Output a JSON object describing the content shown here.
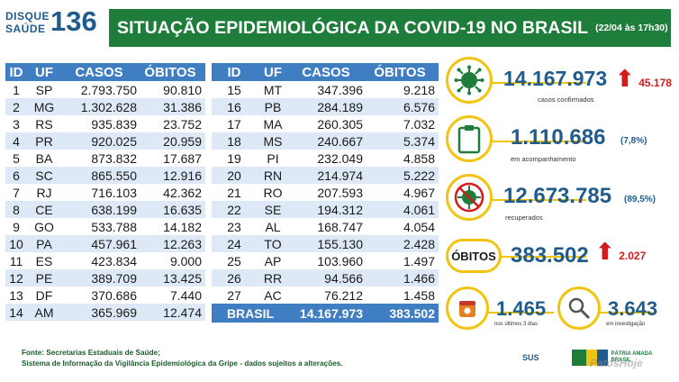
{
  "header": {
    "logo_line1": "DISQUE",
    "logo_line2": "SAÚDE",
    "logo_number": "136",
    "title": "SITUAÇÃO EPIDEMIOLÓGICA DA COVID-19 NO BRASIL",
    "date": "(22/04 às 17h30)"
  },
  "columns": {
    "id": "ID",
    "uf": "UF",
    "casos": "CASOS",
    "obitos": "ÓBITOS"
  },
  "table_left": [
    {
      "id": "1",
      "uf": "SP",
      "casos": "2.793.750",
      "obitos": "90.810"
    },
    {
      "id": "2",
      "uf": "MG",
      "casos": "1.302.628",
      "obitos": "31.386"
    },
    {
      "id": "3",
      "uf": "RS",
      "casos": "935.839",
      "obitos": "23.752"
    },
    {
      "id": "4",
      "uf": "PR",
      "casos": "920.025",
      "obitos": "20.959"
    },
    {
      "id": "5",
      "uf": "BA",
      "casos": "873.832",
      "obitos": "17.687"
    },
    {
      "id": "6",
      "uf": "SC",
      "casos": "865.550",
      "obitos": "12.916"
    },
    {
      "id": "7",
      "uf": "RJ",
      "casos": "716.103",
      "obitos": "42.362"
    },
    {
      "id": "8",
      "uf": "CE",
      "casos": "638.199",
      "obitos": "16.635"
    },
    {
      "id": "9",
      "uf": "GO",
      "casos": "533.788",
      "obitos": "14.182"
    },
    {
      "id": "10",
      "uf": "PA",
      "casos": "457.961",
      "obitos": "12.263"
    },
    {
      "id": "11",
      "uf": "ES",
      "casos": "423.834",
      "obitos": "9.000"
    },
    {
      "id": "12",
      "uf": "PE",
      "casos": "389.709",
      "obitos": "13.425"
    },
    {
      "id": "13",
      "uf": "DF",
      "casos": "370.686",
      "obitos": "7.440"
    },
    {
      "id": "14",
      "uf": "AM",
      "casos": "365.969",
      "obitos": "12.474"
    }
  ],
  "table_right": [
    {
      "id": "15",
      "uf": "MT",
      "casos": "347.396",
      "obitos": "9.218"
    },
    {
      "id": "16",
      "uf": "PB",
      "casos": "284.189",
      "obitos": "6.576"
    },
    {
      "id": "17",
      "uf": "MA",
      "casos": "260.305",
      "obitos": "7.032"
    },
    {
      "id": "18",
      "uf": "MS",
      "casos": "240.667",
      "obitos": "5.374"
    },
    {
      "id": "19",
      "uf": "PI",
      "casos": "232.049",
      "obitos": "4.858"
    },
    {
      "id": "20",
      "uf": "RN",
      "casos": "214.974",
      "obitos": "5.222"
    },
    {
      "id": "21",
      "uf": "RO",
      "casos": "207.593",
      "obitos": "4.967"
    },
    {
      "id": "22",
      "uf": "SE",
      "casos": "194.312",
      "obitos": "4.061"
    },
    {
      "id": "23",
      "uf": "AL",
      "casos": "168.747",
      "obitos": "4.054"
    },
    {
      "id": "24",
      "uf": "TO",
      "casos": "155.130",
      "obitos": "2.428"
    },
    {
      "id": "25",
      "uf": "AP",
      "casos": "103.960",
      "obitos": "1.497"
    },
    {
      "id": "26",
      "uf": "RR",
      "casos": "94.566",
      "obitos": "1.466"
    },
    {
      "id": "27",
      "uf": "AC",
      "casos": "76.212",
      "obitos": "1.458"
    }
  ],
  "total": {
    "label": "BRASIL",
    "casos": "14.167.973",
    "obitos": "383.502"
  },
  "stats": {
    "confirmados": {
      "value": "14.167.973",
      "label": "casos confirmados",
      "increase": "45.178"
    },
    "acompanhamento": {
      "value": "1.110.686",
      "pct": "(7,8%)",
      "label": "em acompanhamento"
    },
    "recuperados": {
      "value": "12.673.785",
      "pct": "(89,5%)",
      "label": "recuperados"
    },
    "obitos": {
      "label": "ÓBITOS",
      "value": "383.502",
      "increase": "2.027"
    },
    "ultimos": {
      "value": "1.465",
      "label": "nos últimos 3 dias"
    },
    "investigacao": {
      "value": "3.643",
      "label": "em investigação"
    }
  },
  "footer": {
    "line1": "Fonte: Secretarias Estaduais de Saúde;",
    "line2": "Sistema de Informação da Vigilância Epidemiológica da Gripe - dados sujeitos a alterações.",
    "sus_label": "SUS",
    "gov_label": "PÁTRIA AMADA",
    "gov_label2": "BRASIL",
    "watermark": "PatosHoje"
  },
  "colors": {
    "title_green": "#1e7d3a",
    "header_blue": "#3f7ec2",
    "row_alt": "#dde9f6",
    "accent_yellow": "#f1c40f",
    "number_blue": "#1f5b8c",
    "increase_red": "#d21b1b"
  },
  "icons": [
    "virus-icon",
    "clipboard-icon",
    "recovered-virus-icon",
    "calendar-icon",
    "magnifier-icon",
    "arrow-up-icon"
  ]
}
